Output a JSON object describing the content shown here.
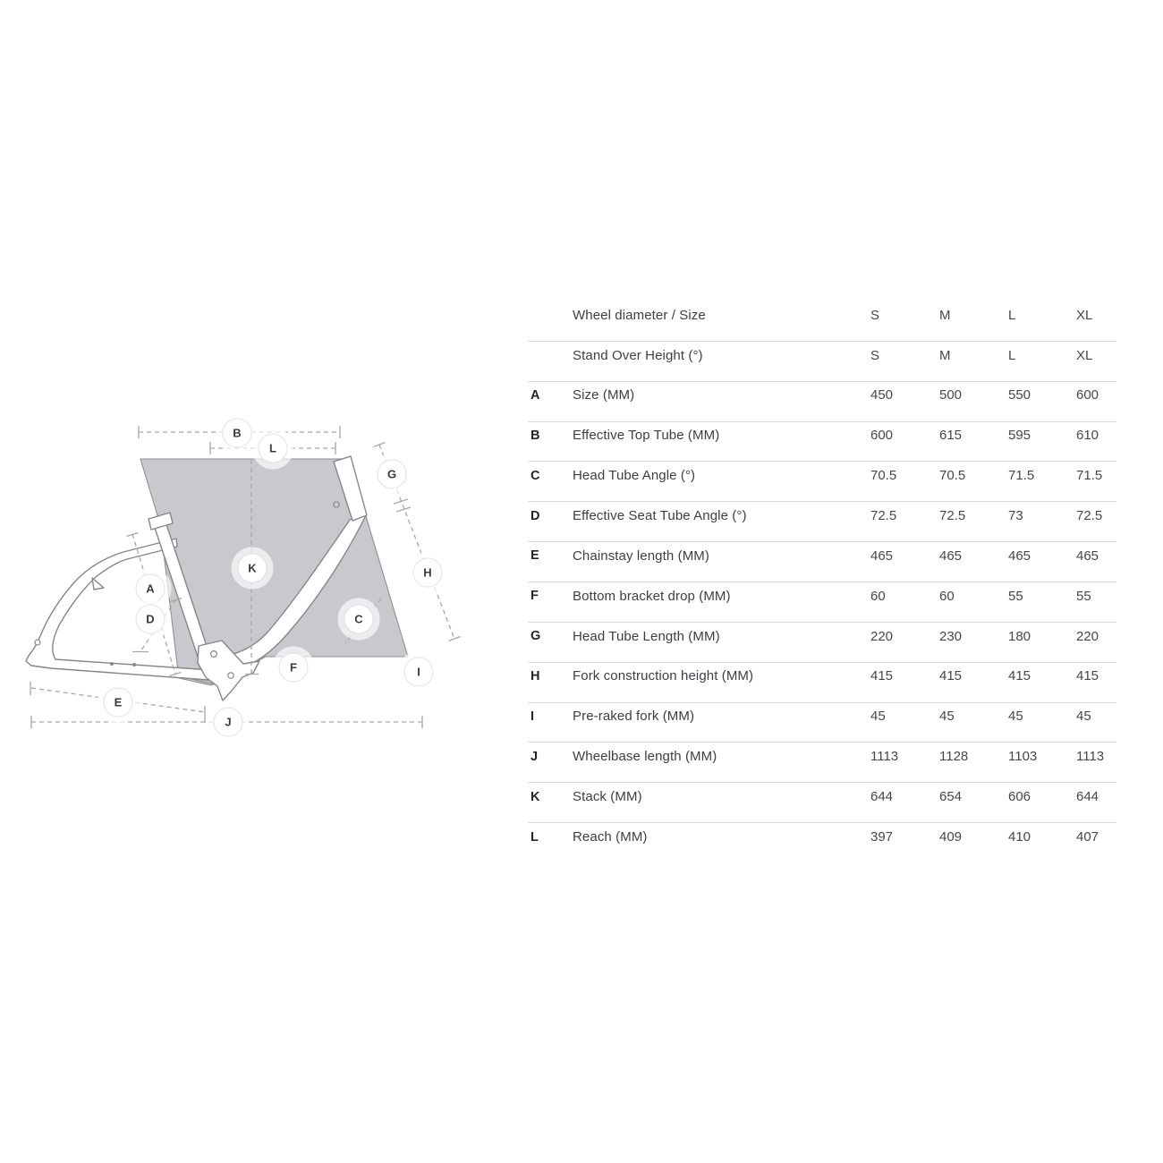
{
  "diagram": {
    "title": "Bike frame geometry diagram",
    "labels": {
      "A": "A",
      "B": "B",
      "C": "C",
      "D": "D",
      "E": "E",
      "F": "F",
      "G": "G",
      "H": "H",
      "I": "I",
      "J": "J",
      "K": "K",
      "L": "L"
    }
  },
  "table": {
    "rows": [
      {
        "letter": "",
        "label": "Wheel diameter / Size",
        "values": [
          "S",
          "M",
          "L",
          "XL"
        ]
      },
      {
        "letter": "",
        "label": "Stand Over Height (°)",
        "values": [
          "S",
          "M",
          "L",
          "XL"
        ]
      },
      {
        "letter": "A",
        "label": "Size (MM)",
        "values": [
          "450",
          "500",
          "550",
          "600"
        ]
      },
      {
        "letter": "B",
        "label": "Effective Top Tube (MM)",
        "values": [
          "600",
          "615",
          "595",
          "610"
        ]
      },
      {
        "letter": "C",
        "label": "Head Tube Angle (°)",
        "values": [
          "70.5",
          "70.5",
          "71.5",
          "71.5"
        ]
      },
      {
        "letter": "D",
        "label": "Effective Seat Tube Angle (°)",
        "values": [
          "72.5",
          "72.5",
          "73",
          "72.5"
        ]
      },
      {
        "letter": "E",
        "label": "Chainstay length (MM)",
        "values": [
          "465",
          "465",
          "465",
          "465"
        ]
      },
      {
        "letter": "F",
        "label": "Bottom bracket drop (MM)",
        "values": [
          "60",
          "60",
          "55",
          "55"
        ]
      },
      {
        "letter": "G",
        "label": "Head Tube Length (MM)",
        "values": [
          "220",
          "230",
          "180",
          "220"
        ]
      },
      {
        "letter": "H",
        "label": "Fork construction height (MM)",
        "values": [
          "415",
          "415",
          "415",
          "415"
        ]
      },
      {
        "letter": "I",
        "label": "Pre-raked fork (MM)",
        "values": [
          "45",
          "45",
          "45",
          "45"
        ]
      },
      {
        "letter": "J",
        "label": "Wheelbase length (MM)",
        "values": [
          "1113",
          "1128",
          "1103",
          "1113"
        ]
      },
      {
        "letter": "K",
        "label": "Stack (MM)",
        "values": [
          "644",
          "654",
          "606",
          "644"
        ]
      },
      {
        "letter": "L",
        "label": "Reach (MM)",
        "values": [
          "397",
          "409",
          "410",
          "407"
        ]
      }
    ]
  },
  "colors": {
    "background": "#ffffff",
    "table_text": "#3e3e44",
    "table_letter": "#242428",
    "divider": "#dcdcde",
    "diagram_fill": "#c9c9cd",
    "diagram_fill_dark": "#bcbcc0",
    "diagram_stroke": "#85858b",
    "dashed_line": "#a6a6ab"
  }
}
